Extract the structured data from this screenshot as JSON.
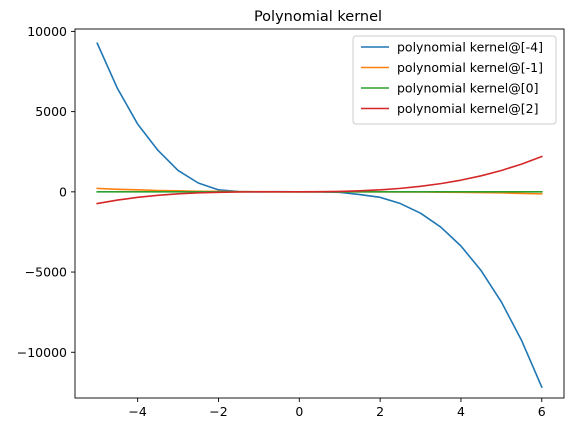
{
  "chart_data": {
    "type": "line",
    "title": "Polynomial kernel",
    "xlabel": "",
    "ylabel": "",
    "xlim": [
      -5.55,
      6.55
    ],
    "ylim": [
      -12850,
      10150
    ],
    "xticks": [
      -4,
      -2,
      0,
      2,
      4,
      6
    ],
    "yticks": [
      -10000,
      -5000,
      0,
      5000,
      10000
    ],
    "xtick_labels": [
      "−4",
      "−2",
      "0",
      "2",
      "4",
      "6"
    ],
    "ytick_labels": [
      "−10000",
      "−5000",
      "0",
      "5000",
      "10000"
    ],
    "legend_position": "top-right",
    "grid": false,
    "x": [
      -5,
      -4.5,
      -4,
      -3.5,
      -3,
      -2.5,
      -2,
      -1.5,
      -1,
      -0.5,
      0,
      0.5,
      1,
      1.5,
      2,
      2.5,
      3,
      3.5,
      4,
      4.5,
      5,
      5.5,
      6
    ],
    "series": [
      {
        "name": "polynomial kernel@[-4]",
        "color": "#1f77b4",
        "values": [
          9261,
          6447,
          4225,
          2593,
          1331,
          551,
          125,
          16,
          1,
          8,
          1,
          -10,
          -27,
          -170,
          -343,
          -729,
          -1331,
          -2197,
          -3375,
          -4913,
          -6859,
          -9261,
          -12167
        ]
      },
      {
        "name": "polynomial kernel@[-1]",
        "color": "#ff7f0e",
        "values": [
          216,
          157,
          125,
          83,
          64,
          37,
          27,
          11,
          8,
          3,
          1,
          0,
          0,
          -1,
          -1,
          -4,
          -8,
          -19,
          -27,
          -46,
          -64,
          -97,
          -125
        ]
      },
      {
        "name": "polynomial kernel@[0]",
        "color": "#2ca02c",
        "values": [
          1,
          1,
          1,
          1,
          1,
          1,
          1,
          1,
          1,
          1,
          1,
          1,
          1,
          1,
          1,
          1,
          1,
          1,
          1,
          1,
          1,
          1,
          1
        ]
      },
      {
        "name": "polynomial kernel@[2]",
        "color": "#d62728",
        "values": [
          -729,
          -512,
          -343,
          -216,
          -125,
          -64,
          -27,
          -8,
          -1,
          0,
          1,
          8,
          27,
          64,
          125,
          216,
          343,
          512,
          729,
          1000,
          1331,
          1728,
          2197
        ]
      }
    ]
  }
}
